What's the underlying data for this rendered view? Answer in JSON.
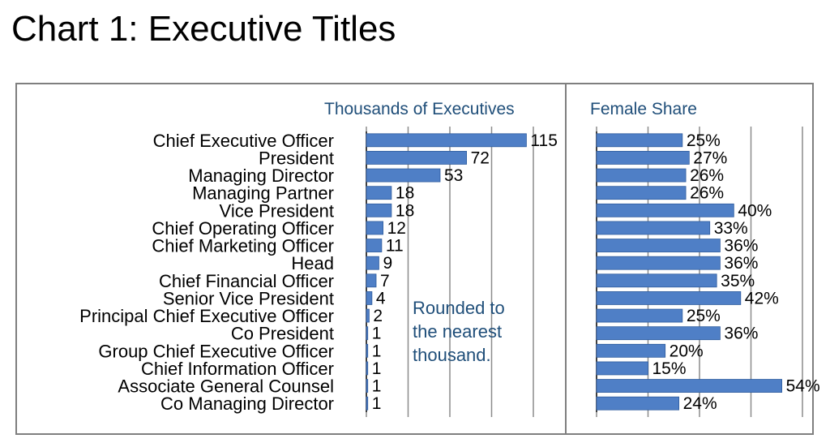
{
  "title": "Chart 1: Executive Titles",
  "colors": {
    "bar": "#4f7fc6",
    "bar_stroke": "#2e5c9e",
    "header": "#1f4e79",
    "frame": "#7f7f7f",
    "grid": "#8c8c8c"
  },
  "chart_data": [
    {
      "type": "bar",
      "orientation": "horizontal",
      "title": "Thousands of Executives",
      "categories": [
        "Chief Executive Officer",
        "President",
        "Managing Director",
        "Managing Partner",
        "Vice President",
        "Chief Operating Officer",
        "Chief Marketing Officer",
        "Head",
        "Chief Financial Officer",
        "Senior Vice President",
        "Principal Chief Executive Officer",
        "Co President",
        "Group Chief Executive Officer",
        "Chief Information Officer",
        "Associate General Counsel",
        "Co Managing Director"
      ],
      "values": [
        115,
        72,
        53,
        18,
        18,
        12,
        11,
        9,
        7,
        4,
        2,
        1,
        1,
        1,
        1,
        1
      ],
      "labels": [
        "115",
        "72",
        "53",
        "18",
        "18",
        "12",
        "11",
        "9",
        "7",
        "4",
        "2",
        "1",
        "1",
        "1",
        "1",
        "1"
      ],
      "xlim": [
        0,
        120
      ],
      "grid": true,
      "annotation": "Rounded to the nearest thousand."
    },
    {
      "type": "bar",
      "orientation": "horizontal",
      "title": "Female Share",
      "categories": [
        "Chief Executive Officer",
        "President",
        "Managing Director",
        "Managing Partner",
        "Vice President",
        "Chief Operating Officer",
        "Chief Marketing Officer",
        "Head",
        "Chief Financial Officer",
        "Senior Vice President",
        "Principal Chief Executive Officer",
        "Co President",
        "Group Chief Executive Officer",
        "Chief Information Officer",
        "Associate General Counsel",
        "Co Managing Director"
      ],
      "values": [
        25,
        27,
        26,
        26,
        40,
        33,
        36,
        36,
        35,
        42,
        25,
        36,
        20,
        15,
        54,
        24
      ],
      "labels": [
        "25%",
        "27%",
        "26%",
        "26%",
        "40%",
        "33%",
        "36%",
        "36%",
        "35%",
        "42%",
        "25%",
        "36%",
        "20%",
        "15%",
        "54%",
        "24%"
      ],
      "xlim": [
        0,
        60
      ],
      "grid": true
    }
  ]
}
